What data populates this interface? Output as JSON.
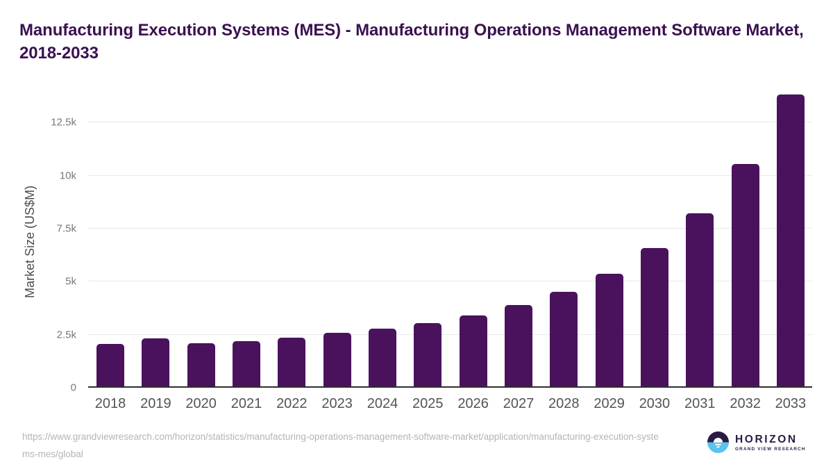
{
  "title": "Manufacturing Execution Systems (MES) - Manufacturing Operations Management Software Market, 2018-2033",
  "chart_data": {
    "type": "bar",
    "title": "Manufacturing Execution Systems (MES) - Manufacturing Operations Management Software Market, 2018-2033",
    "xlabel": "",
    "ylabel": "Market Size (US$M)",
    "categories": [
      "2018",
      "2019",
      "2020",
      "2021",
      "2022",
      "2023",
      "2024",
      "2025",
      "2026",
      "2027",
      "2028",
      "2029",
      "2030",
      "2031",
      "2032",
      "2033"
    ],
    "values": [
      2030,
      2290,
      2050,
      2170,
      2340,
      2540,
      2760,
      3020,
      3390,
      3880,
      4500,
      5350,
      6550,
      8190,
      10510,
      13780
    ],
    "ylim": [
      0,
      14000
    ],
    "yticks": [
      {
        "value": 0,
        "label": "0"
      },
      {
        "value": 2500,
        "label": "2.5k"
      },
      {
        "value": 5000,
        "label": "5k"
      },
      {
        "value": 7500,
        "label": "7.5k"
      },
      {
        "value": 10000,
        "label": "10k"
      },
      {
        "value": 12500,
        "label": "12.5k"
      }
    ],
    "grid": "horizontal",
    "legend": "none",
    "bar_color": "#4a125c"
  },
  "footer": {
    "source_url": "https://www.grandviewresearch.com/horizon/statistics/manufacturing-operations-management-software-market/application/manufacturing-execution-systems-mes/global",
    "logo": {
      "brand": "HORIZON",
      "sub_brand": "GRAND VIEW RESEARCH"
    }
  },
  "colors": {
    "title": "#3a1150",
    "bar": "#4a125c",
    "axis_line": "#2e2e30",
    "gridline": "#e8e8ea",
    "tick_label": "#77787a",
    "x_label": "#535355",
    "y_axis_title": "#4d4d4f",
    "url_text": "#b4b4b6",
    "logo_navy": "#2b1a45",
    "logo_blue": "#5ac3ee"
  }
}
